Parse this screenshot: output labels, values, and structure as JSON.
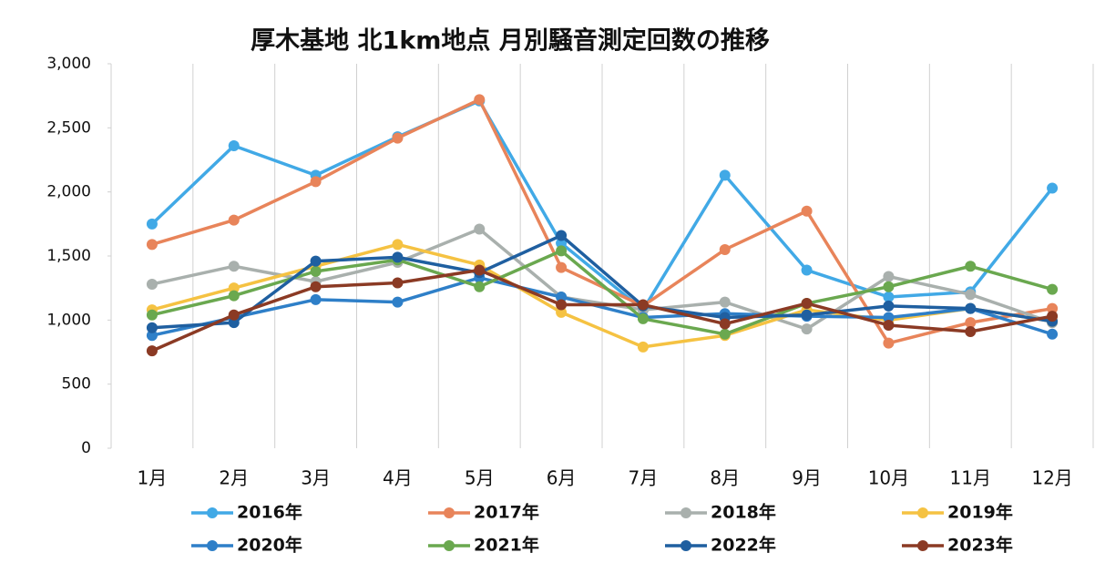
{
  "chart_data": {
    "type": "line",
    "title": "厚木基地 北1km地点 月別騒音測定回数の推移",
    "categories": [
      "1月",
      "2月",
      "3月",
      "4月",
      "5月",
      "6月",
      "7月",
      "8月",
      "9月",
      "10月",
      "11月",
      "12月"
    ],
    "series": [
      {
        "name": "2016年",
        "color": "#41a9e6",
        "values": [
          1750,
          2360,
          2130,
          2430,
          2710,
          1600,
          1080,
          2130,
          1390,
          1180,
          1220,
          2030
        ]
      },
      {
        "name": "2017年",
        "color": "#e8845a",
        "values": [
          1590,
          1780,
          2080,
          2420,
          2720,
          1410,
          1110,
          1550,
          1850,
          820,
          980,
          1090
        ]
      },
      {
        "name": "2018年",
        "color": "#a9b0ad",
        "values": [
          1280,
          1420,
          1300,
          1450,
          1710,
          1180,
          1080,
          1140,
          930,
          1340,
          1200,
          980
        ]
      },
      {
        "name": "2019年",
        "color": "#f5c242",
        "values": [
          1080,
          1250,
          1420,
          1590,
          1430,
          1060,
          790,
          880,
          1080,
          1000,
          1090,
          990
        ]
      },
      {
        "name": "2020年",
        "color": "#2e7fc8",
        "values": [
          880,
          1020,
          1160,
          1140,
          1330,
          1180,
          1020,
          1050,
          1030,
          1020,
          1090,
          890
        ]
      },
      {
        "name": "2021年",
        "color": "#6aa84f",
        "values": [
          1040,
          1190,
          1380,
          1470,
          1260,
          1540,
          1010,
          890,
          1130,
          1260,
          1420,
          1240
        ]
      },
      {
        "name": "2022年",
        "color": "#1f5fa0",
        "values": [
          940,
          980,
          1460,
          1490,
          1370,
          1660,
          1110,
          1020,
          1040,
          1110,
          1090,
          990
        ]
      },
      {
        "name": "2023年",
        "color": "#8b3a24",
        "values": [
          760,
          1040,
          1260,
          1290,
          1390,
          1120,
          1120,
          970,
          1130,
          960,
          910,
          1030
        ]
      }
    ],
    "ylim": [
      0,
      3000
    ],
    "yticks": [
      0,
      500,
      {
        "value": 1000,
        "label": "1,000"
      },
      {
        "value": 1500,
        "label": "1,500"
      },
      {
        "value": 2000,
        "label": "2,000"
      },
      {
        "value": 2500,
        "label": "2,500"
      },
      {
        "value": 3000,
        "label": "3,000"
      }
    ],
    "legend": "bottom"
  }
}
